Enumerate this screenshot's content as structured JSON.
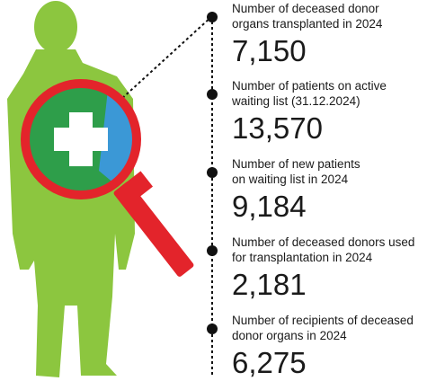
{
  "items": [
    {
      "label_lines": [
        "Number of deceased donor",
        "organs transplanted in 2024"
      ],
      "value": "7,150"
    },
    {
      "label_lines": [
        "Number of patients on active",
        "waiting list (31.12.2024)"
      ],
      "value": "13,570"
    },
    {
      "label_lines": [
        "Number of new patients",
        "on waiting list in 2024"
      ],
      "value": "9,184"
    },
    {
      "label_lines": [
        "Number of deceased donors used",
        "for transplantation in 2024"
      ],
      "value": "2,181"
    },
    {
      "label_lines": [
        "Number of recipients of deceased",
        "donor organs in 2024"
      ],
      "value": "6,275"
    }
  ]
}
